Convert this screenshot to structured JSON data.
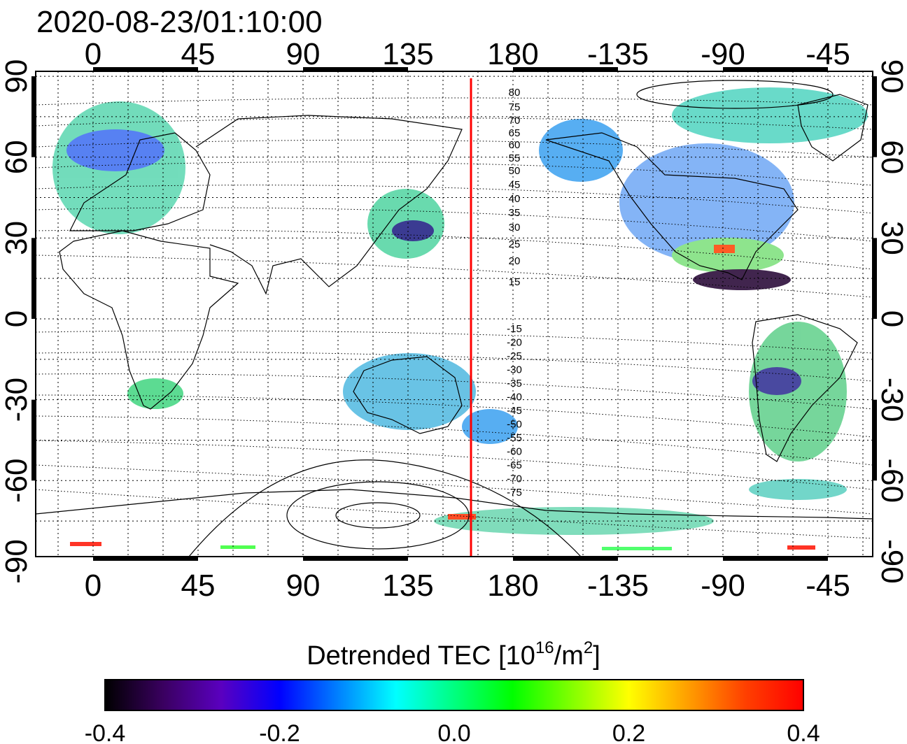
{
  "title": "2020-08-23/01:10:00",
  "map": {
    "lon_ticks_top": [
      "0",
      "45",
      "90",
      "135",
      "180",
      "-135",
      "-90",
      "-45"
    ],
    "lon_ticks_bottom": [
      "0",
      "45",
      "90",
      "135",
      "180",
      "-135",
      "-90",
      "-45"
    ],
    "lat_ticks_left": [
      "90",
      "60",
      "30",
      "0",
      "-30",
      "-60",
      "-90"
    ],
    "lat_ticks_right": [
      "90",
      "60",
      "30",
      "0",
      "-30",
      "-60",
      "-90"
    ],
    "lon_values": [
      0,
      45,
      90,
      135,
      180,
      225,
      270,
      315
    ],
    "lat_values": [
      90,
      60,
      30,
      0,
      -30,
      -60,
      -90
    ],
    "meridian_line_lon": 162,
    "meridian_line_color": "#ff0000",
    "contour_labels_north": [
      "80",
      "75",
      "70",
      "65",
      "60",
      "55",
      "50",
      "45",
      "40",
      "35",
      "30",
      "25",
      "20",
      "15"
    ],
    "contour_labels_south": [
      "-15",
      "-20",
      "-25",
      "-30",
      "-35",
      "-40",
      "-45",
      "-50",
      "-55",
      "-60",
      "-65",
      "-70",
      "-75"
    ]
  },
  "colorbar": {
    "label_main": "Detrended TEC  [10",
    "label_sup1": "16",
    "label_mid": "/m",
    "label_sup2": "2",
    "label_end": "]",
    "min": -0.4,
    "max": 0.4,
    "ticks": [
      "-0.4",
      "-0.2",
      "0.0",
      "0.2",
      "0.4"
    ],
    "colors": [
      "#000000",
      "#3a0060",
      "#5a00c0",
      "#0000ff",
      "#0080ff",
      "#00ffff",
      "#00ff80",
      "#00ff00",
      "#80ff00",
      "#ffff00",
      "#ffa000",
      "#ff4000",
      "#ff0000"
    ]
  }
}
